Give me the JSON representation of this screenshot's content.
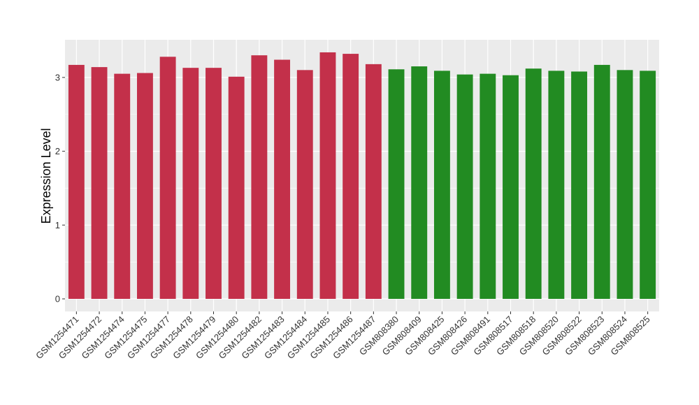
{
  "chart_data": {
    "type": "bar",
    "title": "",
    "xlabel": "",
    "ylabel": "Expression Level",
    "ylim": [
      0,
      3.5
    ],
    "yticks": [
      0,
      1,
      2,
      3
    ],
    "grid": true,
    "legend": "none",
    "categories": [
      "GSM1254471",
      "GSM1254472",
      "GSM1254474",
      "GSM1254475",
      "GSM1254477",
      "GSM1254478",
      "GSM1254479",
      "GSM1254480",
      "GSM1254482",
      "GSM1254483",
      "GSM1254484",
      "GSM1254485",
      "GSM1254486",
      "GSM1254487",
      "GSM808380",
      "GSM808409",
      "GSM808425",
      "GSM808426",
      "GSM808491",
      "GSM808517",
      "GSM808518",
      "GSM808520",
      "GSM808522",
      "GSM808523",
      "GSM808524",
      "GSM808525"
    ],
    "values": [
      3.17,
      3.14,
      3.05,
      3.06,
      3.28,
      3.13,
      3.13,
      3.01,
      3.3,
      3.24,
      3.1,
      3.34,
      3.32,
      3.18,
      3.11,
      3.15,
      3.09,
      3.04,
      3.05,
      3.03,
      3.12,
      3.09,
      3.08,
      3.17,
      3.1,
      3.09
    ],
    "groups": [
      "red",
      "red",
      "red",
      "red",
      "red",
      "red",
      "red",
      "red",
      "red",
      "red",
      "red",
      "red",
      "red",
      "red",
      "green",
      "green",
      "green",
      "green",
      "green",
      "green",
      "green",
      "green",
      "green",
      "green",
      "green",
      "green"
    ],
    "colors": {
      "red": "#C3304A",
      "green": "#228B22",
      "panel": "#EBEBEB",
      "grid": "#FFFFFF"
    }
  }
}
